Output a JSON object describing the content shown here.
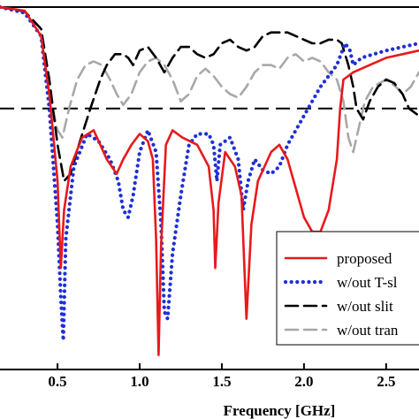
{
  "chart_data": {
    "type": "line",
    "xlabel": "Frequency [GHz]",
    "ylabel": "",
    "title": "",
    "xlim": [
      0.15,
      2.7
    ],
    "ylim": [
      -50,
      0
    ],
    "x_ticks": [
      0.5,
      1.0,
      1.5,
      2.0,
      2.5
    ],
    "x_tick_labels": [
      "0.5",
      "1.0",
      "1.5",
      "2.0",
      "2.5"
    ],
    "reference_line": {
      "y": -14,
      "style": "dashed",
      "color": "#000000"
    },
    "grid": false,
    "legend": {
      "placement": "lower-right",
      "entries": [
        "proposed",
        "w/out T-sl",
        "w/out slit",
        "w/out tran"
      ]
    },
    "series": [
      {
        "name": "proposed",
        "color": "#e8191c",
        "dash": "solid",
        "points": [
          [
            0.15,
            0
          ],
          [
            0.3,
            -0.5
          ],
          [
            0.4,
            -4
          ],
          [
            0.45,
            -12
          ],
          [
            0.5,
            -24
          ],
          [
            0.52,
            -36
          ],
          [
            0.54,
            -28
          ],
          [
            0.58,
            -22
          ],
          [
            0.65,
            -18
          ],
          [
            0.72,
            -17
          ],
          [
            0.8,
            -21
          ],
          [
            0.86,
            -23
          ],
          [
            0.9,
            -21
          ],
          [
            0.95,
            -19
          ],
          [
            1.0,
            -17.5
          ],
          [
            1.05,
            -18.5
          ],
          [
            1.08,
            -21
          ],
          [
            1.1,
            -32
          ],
          [
            1.115,
            -48
          ],
          [
            1.13,
            -33
          ],
          [
            1.16,
            -19
          ],
          [
            1.2,
            -17
          ],
          [
            1.26,
            -18
          ],
          [
            1.35,
            -19
          ],
          [
            1.42,
            -22
          ],
          [
            1.45,
            -28
          ],
          [
            1.46,
            -36
          ],
          [
            1.48,
            -27
          ],
          [
            1.52,
            -20
          ],
          [
            1.58,
            -22
          ],
          [
            1.62,
            -26
          ],
          [
            1.65,
            -43
          ],
          [
            1.68,
            -30
          ],
          [
            1.72,
            -24
          ],
          [
            1.8,
            -20
          ],
          [
            1.85,
            -19
          ],
          [
            1.9,
            -21
          ],
          [
            1.95,
            -25
          ],
          [
            2.0,
            -29
          ],
          [
            2.05,
            -31
          ],
          [
            2.1,
            -31
          ],
          [
            2.15,
            -28
          ],
          [
            2.2,
            -21
          ],
          [
            2.22,
            -14
          ],
          [
            2.24,
            -10
          ],
          [
            2.3,
            -9
          ],
          [
            2.4,
            -8
          ],
          [
            2.5,
            -7
          ],
          [
            2.6,
            -6.5
          ],
          [
            2.7,
            -6
          ]
        ]
      },
      {
        "name": "w/out T-sl",
        "color": "#1f2fd6",
        "dash": "dotted",
        "points": [
          [
            0.15,
            0
          ],
          [
            0.3,
            -0.8
          ],
          [
            0.4,
            -4
          ],
          [
            0.45,
            -14
          ],
          [
            0.5,
            -30
          ],
          [
            0.52,
            -40
          ],
          [
            0.535,
            -46
          ],
          [
            0.55,
            -32
          ],
          [
            0.6,
            -22
          ],
          [
            0.68,
            -17.5
          ],
          [
            0.75,
            -18.5
          ],
          [
            0.82,
            -21
          ],
          [
            0.87,
            -24
          ],
          [
            0.9,
            -28
          ],
          [
            0.93,
            -29
          ],
          [
            0.96,
            -26
          ],
          [
            1.0,
            -20
          ],
          [
            1.05,
            -17
          ],
          [
            1.1,
            -20
          ],
          [
            1.13,
            -30
          ],
          [
            1.15,
            -42
          ],
          [
            1.17,
            -43
          ],
          [
            1.2,
            -34
          ],
          [
            1.25,
            -26
          ],
          [
            1.3,
            -19
          ],
          [
            1.35,
            -17.5
          ],
          [
            1.42,
            -17.5
          ],
          [
            1.45,
            -19
          ],
          [
            1.47,
            -24
          ],
          [
            1.49,
            -19
          ],
          [
            1.55,
            -18
          ],
          [
            1.6,
            -21
          ],
          [
            1.63,
            -28
          ],
          [
            1.66,
            -24
          ],
          [
            1.7,
            -21
          ],
          [
            1.75,
            -22.5
          ],
          [
            1.8,
            -23
          ],
          [
            1.85,
            -22
          ],
          [
            1.9,
            -19
          ],
          [
            2.0,
            -15
          ],
          [
            2.1,
            -11
          ],
          [
            2.2,
            -8
          ],
          [
            2.25,
            -5
          ],
          [
            2.28,
            -6
          ],
          [
            2.3,
            -8
          ],
          [
            2.35,
            -7
          ],
          [
            2.5,
            -6
          ],
          [
            2.6,
            -5.5
          ],
          [
            2.7,
            -5
          ]
        ]
      },
      {
        "name": "w/out slit",
        "color": "#000000",
        "dash": "dashed",
        "points": [
          [
            0.15,
            0
          ],
          [
            0.3,
            -0.6
          ],
          [
            0.4,
            -3
          ],
          [
            0.45,
            -10
          ],
          [
            0.5,
            -19
          ],
          [
            0.54,
            -24
          ],
          [
            0.58,
            -23
          ],
          [
            0.63,
            -19
          ],
          [
            0.7,
            -14
          ],
          [
            0.76,
            -10
          ],
          [
            0.8,
            -8
          ],
          [
            0.85,
            -6.5
          ],
          [
            0.9,
            -6.5
          ],
          [
            0.93,
            -7
          ],
          [
            0.96,
            -8
          ],
          [
            1.0,
            -6
          ],
          [
            1.05,
            -5.5
          ],
          [
            1.1,
            -7
          ],
          [
            1.15,
            -9
          ],
          [
            1.2,
            -7
          ],
          [
            1.25,
            -5.5
          ],
          [
            1.3,
            -5.5
          ],
          [
            1.35,
            -6.5
          ],
          [
            1.4,
            -7
          ],
          [
            1.45,
            -6.5
          ],
          [
            1.5,
            -5
          ],
          [
            1.55,
            -4.5
          ],
          [
            1.6,
            -5.5
          ],
          [
            1.65,
            -6
          ],
          [
            1.7,
            -5.5
          ],
          [
            1.75,
            -4
          ],
          [
            1.8,
            -3.5
          ],
          [
            1.9,
            -3.5
          ],
          [
            1.95,
            -4
          ],
          [
            2.05,
            -5
          ],
          [
            2.1,
            -5
          ],
          [
            2.15,
            -4.5
          ],
          [
            2.2,
            -4.5
          ],
          [
            2.23,
            -5
          ],
          [
            2.27,
            -8
          ],
          [
            2.3,
            -11
          ],
          [
            2.32,
            -14
          ],
          [
            2.36,
            -15.5
          ],
          [
            2.4,
            -13
          ],
          [
            2.45,
            -11
          ],
          [
            2.5,
            -10
          ],
          [
            2.55,
            -10.5
          ],
          [
            2.6,
            -12
          ],
          [
            2.64,
            -14
          ],
          [
            2.7,
            -15
          ]
        ]
      },
      {
        "name": "w/out tran",
        "color": "#a8a8a8",
        "dash": "dashed",
        "points": [
          [
            0.15,
            0
          ],
          [
            0.3,
            -0.6
          ],
          [
            0.4,
            -3
          ],
          [
            0.45,
            -12
          ],
          [
            0.5,
            -17
          ],
          [
            0.53,
            -18
          ],
          [
            0.57,
            -14
          ],
          [
            0.62,
            -10
          ],
          [
            0.67,
            -8
          ],
          [
            0.72,
            -7.5
          ],
          [
            0.77,
            -8
          ],
          [
            0.82,
            -10
          ],
          [
            0.86,
            -12
          ],
          [
            0.9,
            -13.5
          ],
          [
            0.95,
            -12
          ],
          [
            1.0,
            -9
          ],
          [
            1.05,
            -7.5
          ],
          [
            1.1,
            -7
          ],
          [
            1.15,
            -8
          ],
          [
            1.2,
            -10
          ],
          [
            1.25,
            -13
          ],
          [
            1.3,
            -12
          ],
          [
            1.35,
            -9.5
          ],
          [
            1.4,
            -8.5
          ],
          [
            1.45,
            -9.5
          ],
          [
            1.5,
            -11
          ],
          [
            1.55,
            -12
          ],
          [
            1.6,
            -12.5
          ],
          [
            1.65,
            -11
          ],
          [
            1.7,
            -9
          ],
          [
            1.75,
            -8
          ],
          [
            1.8,
            -8
          ],
          [
            1.85,
            -8.5
          ],
          [
            1.9,
            -7
          ],
          [
            1.95,
            -6.5
          ],
          [
            2.0,
            -7.5
          ],
          [
            2.05,
            -7
          ],
          [
            2.1,
            -7.5
          ],
          [
            2.15,
            -9
          ],
          [
            2.2,
            -10
          ],
          [
            2.24,
            -13
          ],
          [
            2.27,
            -18
          ],
          [
            2.3,
            -20
          ],
          [
            2.33,
            -17
          ],
          [
            2.37,
            -13
          ],
          [
            2.42,
            -11
          ],
          [
            2.5,
            -10
          ],
          [
            2.56,
            -11
          ],
          [
            2.6,
            -12
          ],
          [
            2.65,
            -11
          ],
          [
            2.7,
            -9
          ]
        ]
      }
    ]
  }
}
